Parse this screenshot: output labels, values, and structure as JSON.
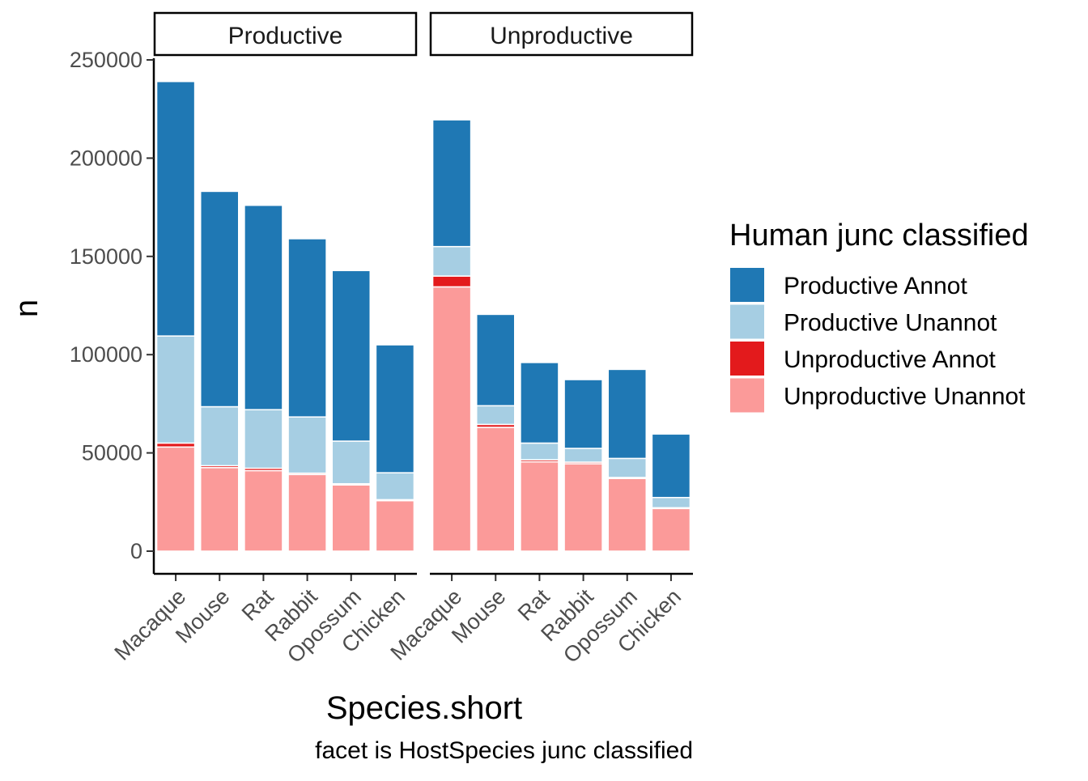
{
  "chart_data": {
    "type": "bar",
    "stacked": true,
    "facet_title_key": "HostSpecies junc classified",
    "facets": [
      {
        "label": "Productive",
        "categories": [
          "Macaque",
          "Mouse",
          "Rat",
          "Rabbit",
          "Opossum",
          "Chicken"
        ],
        "series": [
          {
            "name": "Unproductive Unannot",
            "values": [
              53000,
              42500,
              41000,
              39000,
              33700,
              25700
            ]
          },
          {
            "name": "Unproductive Annot",
            "values": [
              2000,
              1000,
              1200,
              700,
              600,
              500
            ]
          },
          {
            "name": "Productive Unannot",
            "values": [
              54500,
              30000,
              29800,
              28600,
              21700,
              13700
            ]
          },
          {
            "name": "Productive Annot",
            "values": [
              129500,
              109600,
              104000,
              90700,
              86800,
              65100
            ]
          }
        ]
      },
      {
        "label": "Unproductive",
        "categories": [
          "Macaque",
          "Mouse",
          "Rat",
          "Rabbit",
          "Opossum",
          "Chicken"
        ],
        "series": [
          {
            "name": "Unproductive Unannot",
            "values": [
              134500,
              63000,
              45500,
              44500,
              37000,
              21700
            ]
          },
          {
            "name": "Unproductive Annot",
            "values": [
              5500,
              1500,
              1000,
              800,
              500,
              400
            ]
          },
          {
            "name": "Productive Unannot",
            "values": [
              15000,
              9500,
              8500,
              7000,
              9700,
              5200
            ]
          },
          {
            "name": "Productive Annot",
            "values": [
              64500,
              46500,
              41000,
              35000,
              45300,
              32300
            ]
          }
        ]
      }
    ],
    "colors": {
      "Productive Annot": "#1F78B4",
      "Productive Unannot": "#A6CEE3",
      "Unproductive Annot": "#E31A1C",
      "Unproductive Unannot": "#FB9A99"
    },
    "xlabel": "Species.short",
    "ylabel": "n",
    "caption": "facet is HostSpecies junc classified",
    "ylim": [
      0,
      260000
    ],
    "yticks": [
      0,
      50000,
      100000,
      150000,
      200000,
      250000
    ],
    "ytick_labels": [
      "0",
      "50000",
      "100000",
      "150000",
      "200000",
      "250000"
    ],
    "grid": false,
    "legend": {
      "title": "Human junc classified",
      "position": "right",
      "entries": [
        "Productive Annot",
        "Productive Unannot",
        "Unproductive Annot",
        "Unproductive Unannot"
      ]
    }
  }
}
